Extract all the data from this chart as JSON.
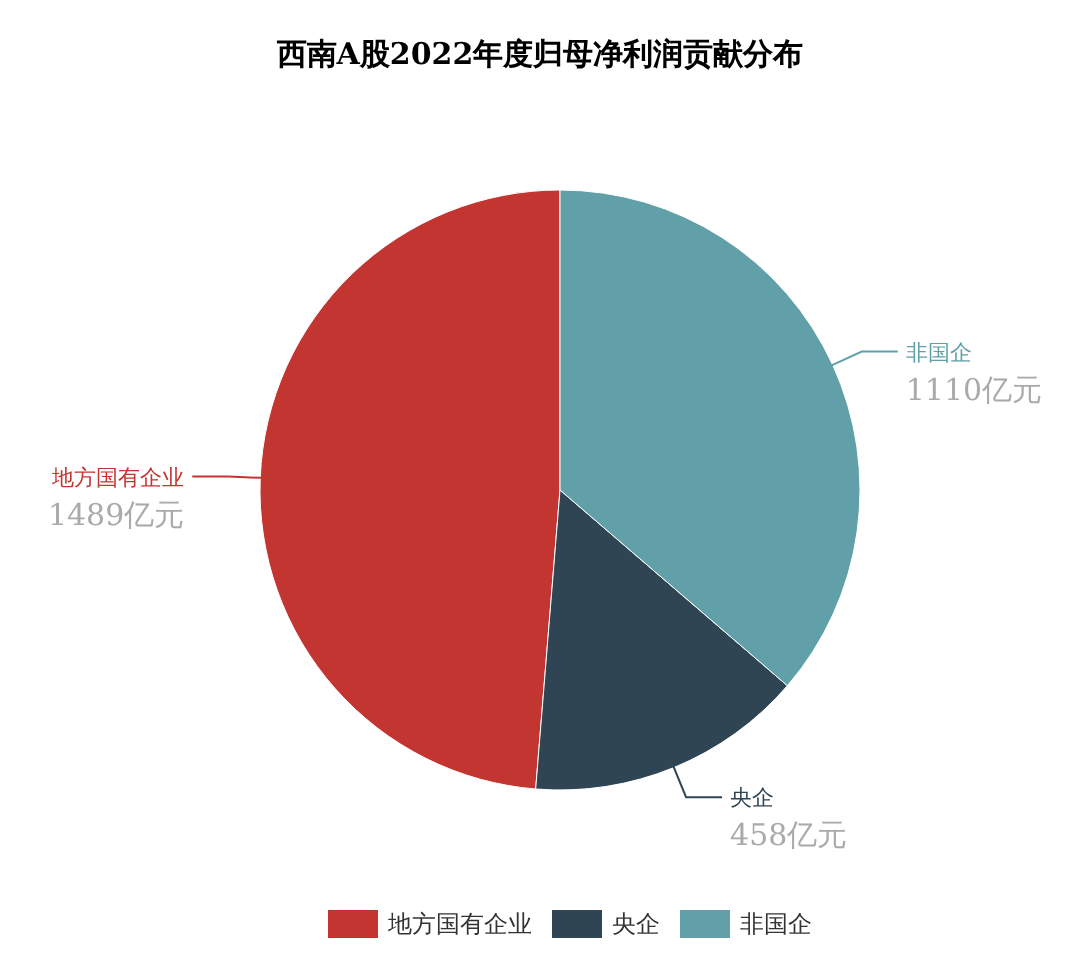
{
  "chart_data": {
    "type": "pie",
    "title": "西南A股2022年度归母净利润贡献分布",
    "categories": [
      "地方国有企业",
      "央企",
      "非国企"
    ],
    "values": [
      1489,
      458,
      1110
    ],
    "colors": [
      "#c23531",
      "#2f4554",
      "#61a0a8"
    ],
    "value_labels": [
      "1489亿元",
      "458亿元",
      "1110亿元"
    ],
    "legend": "bottom"
  }
}
